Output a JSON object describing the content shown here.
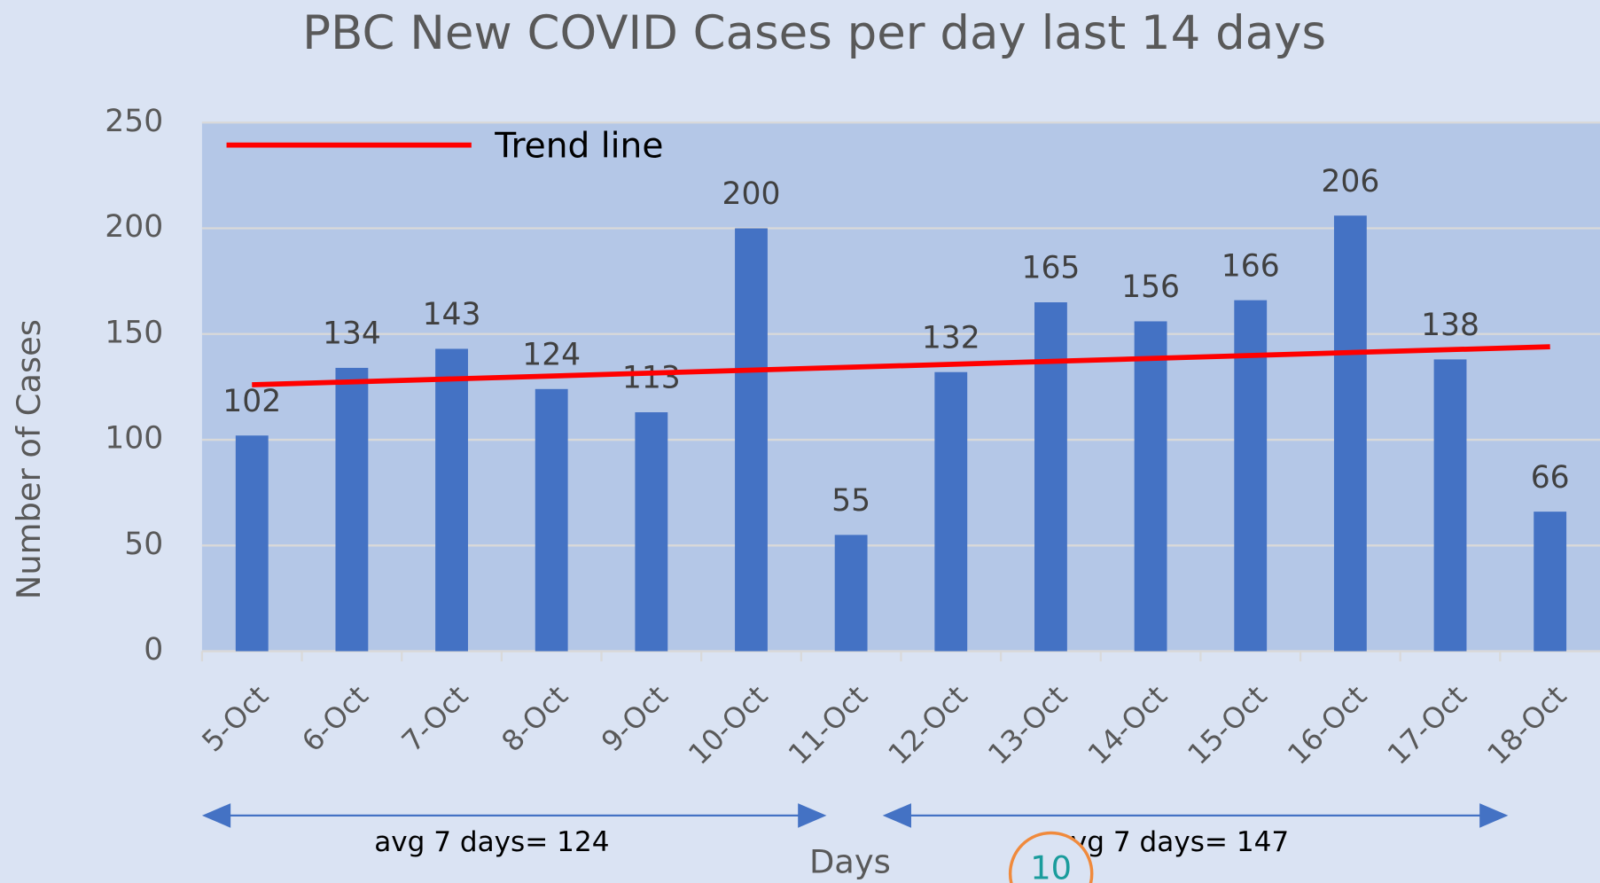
{
  "chart_data": {
    "type": "bar",
    "title": "PBC New COVID Cases per day last 14 days",
    "x_label": "Days",
    "y_label": "Number of Cases",
    "categories": [
      "5-Oct",
      "6-Oct",
      "7-Oct",
      "8-Oct",
      "9-Oct",
      "10-Oct",
      "11-Oct",
      "12-Oct",
      "13-Oct",
      "14-Oct",
      "15-Oct",
      "16-Oct",
      "17-Oct",
      "18-Oct"
    ],
    "values": [
      102,
      134,
      143,
      124,
      113,
      200,
      55,
      132,
      165,
      156,
      166,
      206,
      138,
      66
    ],
    "color": "#4472c4",
    "trend": {
      "name": "Trend line",
      "color": "#ff0000",
      "values": [
        126,
        144
      ]
    },
    "legend": "top-left",
    "ylim": [
      0,
      250
    ],
    "yticks": [
      0,
      50,
      100,
      150,
      200,
      250
    ],
    "grid": true,
    "annotations": [
      "avg 7 days= 124",
      "avg 7 days= 147"
    ],
    "page_number": "10"
  }
}
